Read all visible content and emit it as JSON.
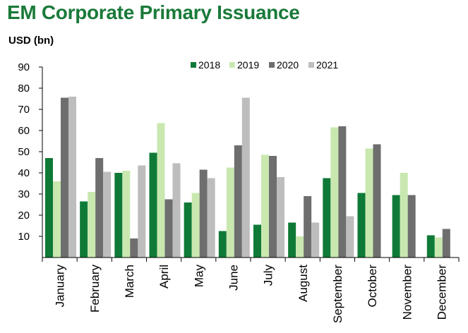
{
  "header": {
    "title": "EM Corporate Primary Issuance",
    "unit_label": "USD (bn)"
  },
  "chart_data": {
    "type": "bar",
    "title": "EM Corporate Primary Issuance",
    "ylabel": "USD (bn)",
    "xlabel": "",
    "ylim": [
      0,
      90
    ],
    "yticks": [
      10,
      20,
      30,
      40,
      50,
      60,
      70,
      80,
      90
    ],
    "grid": false,
    "legend_position": "top-center",
    "categories": [
      "January",
      "February",
      "March",
      "April",
      "May",
      "June",
      "July",
      "August",
      "September",
      "October",
      "November",
      "December"
    ],
    "series": [
      {
        "name": "2018",
        "color": "#0f7a37",
        "values": [
          47,
          26.5,
          40,
          49.5,
          26,
          12.5,
          15.5,
          16.5,
          37.5,
          30.5,
          29.5,
          10.5
        ]
      },
      {
        "name": "2019",
        "color": "#c9e8b0",
        "values": [
          36,
          31,
          41,
          63.5,
          30.5,
          42.5,
          48.5,
          10,
          61.5,
          51.5,
          40,
          9.5
        ]
      },
      {
        "name": "2020",
        "color": "#6e6e6e",
        "values": [
          75.5,
          47,
          9,
          27.5,
          41.5,
          53,
          48,
          29,
          62,
          53.5,
          29.5,
          13.5
        ]
      },
      {
        "name": "2021",
        "color": "#bdbdbd",
        "values": [
          76,
          40.5,
          43.5,
          44.5,
          37.5,
          75.5,
          38,
          16.5,
          19.5,
          null,
          null,
          null
        ]
      }
    ]
  }
}
